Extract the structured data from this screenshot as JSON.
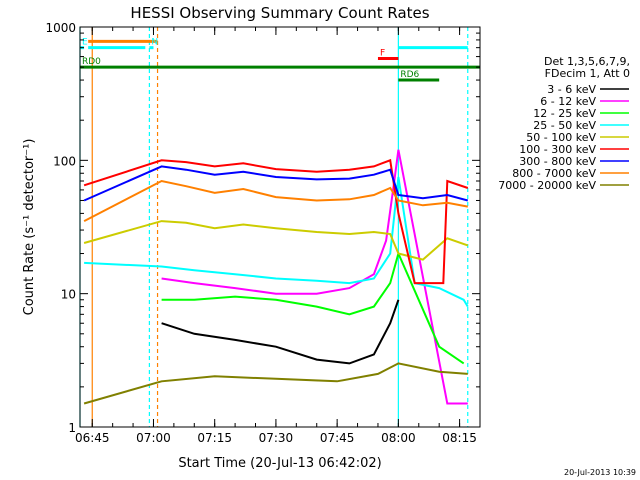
{
  "chart_data": {
    "type": "line",
    "title": "HESSI Observing Summary Count Rates",
    "xlabel": "Start Time (20-Jul-13 06:42:02)",
    "ylabel": "Count Rate (s⁻¹ detector⁻¹)",
    "x_scale": "time",
    "y_scale": "log",
    "ylim": [
      1,
      1000
    ],
    "xlim": [
      "06:42",
      "08:20"
    ],
    "x_ticks": [
      "06:45",
      "07:00",
      "07:15",
      "07:30",
      "07:45",
      "08:00",
      "08:15"
    ],
    "y_ticks": [
      "1",
      "10",
      "100",
      "1000"
    ],
    "legend_header": [
      "Det 1,3,5,6,7,9,",
      "FDecim 1, Att 0"
    ],
    "legend_position": "right",
    "series": [
      {
        "name": "3 - 6 keV",
        "color": "#000000",
        "x": [
          "07:02",
          "07:10",
          "07:20",
          "07:30",
          "07:40",
          "07:48",
          "07:54",
          "07:58",
          "08:00"
        ],
        "values": [
          6,
          5,
          4.5,
          4,
          3.2,
          3,
          3.5,
          6,
          9
        ]
      },
      {
        "name": "6 - 12 keV",
        "color": "#ff00ff",
        "x": [
          "07:02",
          "07:10",
          "07:20",
          "07:30",
          "07:40",
          "07:48",
          "07:54",
          "07:57",
          "07:59",
          "08:00",
          "08:12",
          "08:17"
        ],
        "values": [
          13,
          12,
          11,
          10,
          10,
          11,
          14,
          25,
          70,
          120,
          1.5,
          1.5
        ]
      },
      {
        "name": "12 - 25 keV",
        "color": "#00ff00",
        "x": [
          "07:02",
          "07:10",
          "07:20",
          "07:30",
          "07:40",
          "07:48",
          "07:54",
          "07:58",
          "08:00",
          "08:10",
          "08:16"
        ],
        "values": [
          9,
          9,
          9.5,
          9,
          8,
          7,
          8,
          12,
          20,
          4,
          3
        ]
      },
      {
        "name": "25 - 50 keV",
        "color": "#00ffff",
        "x": [
          "06:43",
          "07:02",
          "07:10",
          "07:20",
          "07:30",
          "07:40",
          "07:48",
          "07:54",
          "07:58",
          "08:00",
          "08:04",
          "08:10",
          "08:16",
          "08:17"
        ],
        "values": [
          17,
          16,
          15,
          14,
          13,
          12.5,
          12,
          13,
          20,
          75,
          12,
          11,
          9,
          8
        ]
      },
      {
        "name": "50 - 100 keV",
        "color": "#cccc00",
        "x": [
          "06:43",
          "07:02",
          "07:08",
          "07:15",
          "07:22",
          "07:30",
          "07:40",
          "07:48",
          "07:54",
          "07:58",
          "08:00",
          "08:06",
          "08:12",
          "08:17"
        ],
        "values": [
          24,
          35,
          34,
          31,
          33,
          31,
          29,
          28,
          29,
          28,
          20,
          18,
          26,
          23
        ]
      },
      {
        "name": "100 - 300 keV",
        "color": "#ff0000",
        "x": [
          "06:43",
          "07:02",
          "07:08",
          "07:15",
          "07:22",
          "07:30",
          "07:40",
          "07:48",
          "07:54",
          "07:58",
          "08:00",
          "08:04",
          "08:08",
          "08:11",
          "08:12",
          "08:17"
        ],
        "values": [
          65,
          100,
          97,
          90,
          95,
          86,
          82,
          85,
          90,
          100,
          40,
          12,
          12,
          12,
          70,
          62
        ]
      },
      {
        "name": "300 - 800 keV",
        "color": "#0000ff",
        "x": [
          "06:43",
          "07:02",
          "07:08",
          "07:15",
          "07:22",
          "07:30",
          "07:40",
          "07:48",
          "07:54",
          "07:58",
          "08:00",
          "08:06",
          "08:12",
          "08:17"
        ],
        "values": [
          50,
          90,
          85,
          78,
          82,
          75,
          72,
          73,
          78,
          85,
          55,
          52,
          55,
          50
        ]
      },
      {
        "name": "800 - 7000 keV",
        "color": "#ff8000",
        "x": [
          "06:43",
          "07:02",
          "07:08",
          "07:15",
          "07:22",
          "07:30",
          "07:40",
          "07:48",
          "07:54",
          "07:58",
          "08:00",
          "08:06",
          "08:12",
          "08:17"
        ],
        "values": [
          35,
          70,
          64,
          57,
          61,
          53,
          50,
          51,
          55,
          62,
          50,
          46,
          48,
          45
        ]
      },
      {
        "name": "7000 - 20000 keV",
        "color": "#808000",
        "x": [
          "06:43",
          "07:02",
          "07:15",
          "07:30",
          "07:45",
          "07:55",
          "08:00",
          "08:10",
          "08:17"
        ],
        "values": [
          1.5,
          2.2,
          2.4,
          2.3,
          2.2,
          2.5,
          3,
          2.6,
          2.5
        ]
      }
    ],
    "annotations": [
      {
        "label": "",
        "color": "#ff8000",
        "y": 780,
        "x_start": "06:44",
        "x_end": "07:01"
      },
      {
        "label": "E",
        "color": "#00ffff",
        "y": 700,
        "x_start": "06:42",
        "x_end": "06:43"
      },
      {
        "label": "",
        "color": "#00ffff",
        "y": 700,
        "x_start": "06:44",
        "x_end": "06:58"
      },
      {
        "label": "N",
        "color": "#00ffff",
        "y": 700,
        "x_start": "06:59",
        "x_end": "07:00"
      },
      {
        "label": "",
        "color": "#00ffff",
        "y": 700,
        "x_start": "08:00",
        "x_end": "08:17"
      },
      {
        "label": "F",
        "color": "#ff0000",
        "y": 580,
        "x_start": "07:55",
        "x_end": "08:00"
      },
      {
        "label": "RD0",
        "color": "#008000",
        "y": 500,
        "x_start": "06:42",
        "x_end": "08:20"
      },
      {
        "label": "RD6",
        "color": "#008000",
        "y": 400,
        "x_start": "08:00",
        "x_end": "08:10"
      }
    ],
    "vertical_markers": [
      {
        "x": "06:42",
        "color": "#00ffff",
        "style": "solid"
      },
      {
        "x": "06:45",
        "color": "#ff8000",
        "style": "solid"
      },
      {
        "x": "06:59",
        "color": "#00ffff",
        "style": "dashed"
      },
      {
        "x": "07:01",
        "color": "#ff8000",
        "style": "dashed"
      },
      {
        "x": "08:00",
        "color": "#00ffff",
        "style": "solid"
      },
      {
        "x": "08:17",
        "color": "#00ffff",
        "style": "dashed"
      }
    ]
  },
  "footer": {
    "timestamp": "20-Jul-2013 10:39"
  },
  "colors": {
    "background": "#ffffff",
    "axis": "#000000"
  }
}
